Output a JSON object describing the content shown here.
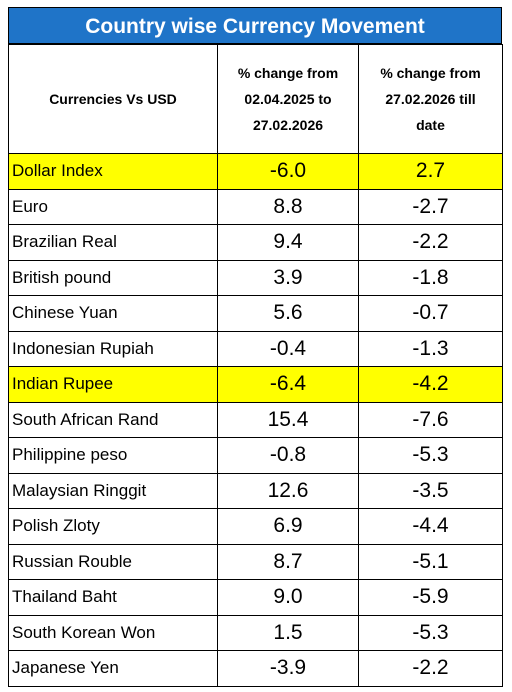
{
  "title": "Country wise Currency Movement",
  "header": {
    "col1": "Currencies  Vs USD",
    "col2_lines": [
      "% change  from",
      "02.04.2025 to",
      "27.02.2026"
    ],
    "col3_lines": [
      "% change  from",
      "27.02.2026 till",
      "date"
    ]
  },
  "highlight_color": "#ffff00",
  "title_bg": "#1f74c8",
  "rows": [
    {
      "name": "Dollar Index",
      "a": "-6.0",
      "b": "2.7",
      "highlight": true
    },
    {
      "name": "Euro",
      "a": "8.8",
      "b": "-2.7",
      "highlight": false
    },
    {
      "name": "Brazilian Real",
      "a": "9.4",
      "b": "-2.2",
      "highlight": false
    },
    {
      "name": "British pound",
      "a": "3.9",
      "b": "-1.8",
      "highlight": false
    },
    {
      "name": "Chinese Yuan",
      "a": "5.6",
      "b": "-0.7",
      "highlight": false
    },
    {
      "name": "Indonesian Rupiah",
      "a": "-0.4",
      "b": "-1.3",
      "highlight": false
    },
    {
      "name": "Indian Rupee",
      "a": "-6.4",
      "b": "-4.2",
      "highlight": true
    },
    {
      "name": "South African Rand",
      "a": "15.4",
      "b": "-7.6",
      "highlight": false
    },
    {
      "name": "Philippine peso",
      "a": "-0.8",
      "b": "-5.3",
      "highlight": false
    },
    {
      "name": "Malaysian Ringgit",
      "a": "12.6",
      "b": "-3.5",
      "highlight": false
    },
    {
      "name": "Polish Zloty",
      "a": "6.9",
      "b": "-4.4",
      "highlight": false
    },
    {
      "name": "Russian Rouble",
      "a": "8.7",
      "b": "-5.1",
      "highlight": false
    },
    {
      "name": "Thailand Baht",
      "a": "9.0",
      "b": "-5.9",
      "highlight": false
    },
    {
      "name": "South Korean Won",
      "a": "1.5",
      "b": "-5.3",
      "highlight": false
    },
    {
      "name": "Japanese Yen",
      "a": "-3.9",
      "b": "-2.2",
      "highlight": false
    }
  ]
}
